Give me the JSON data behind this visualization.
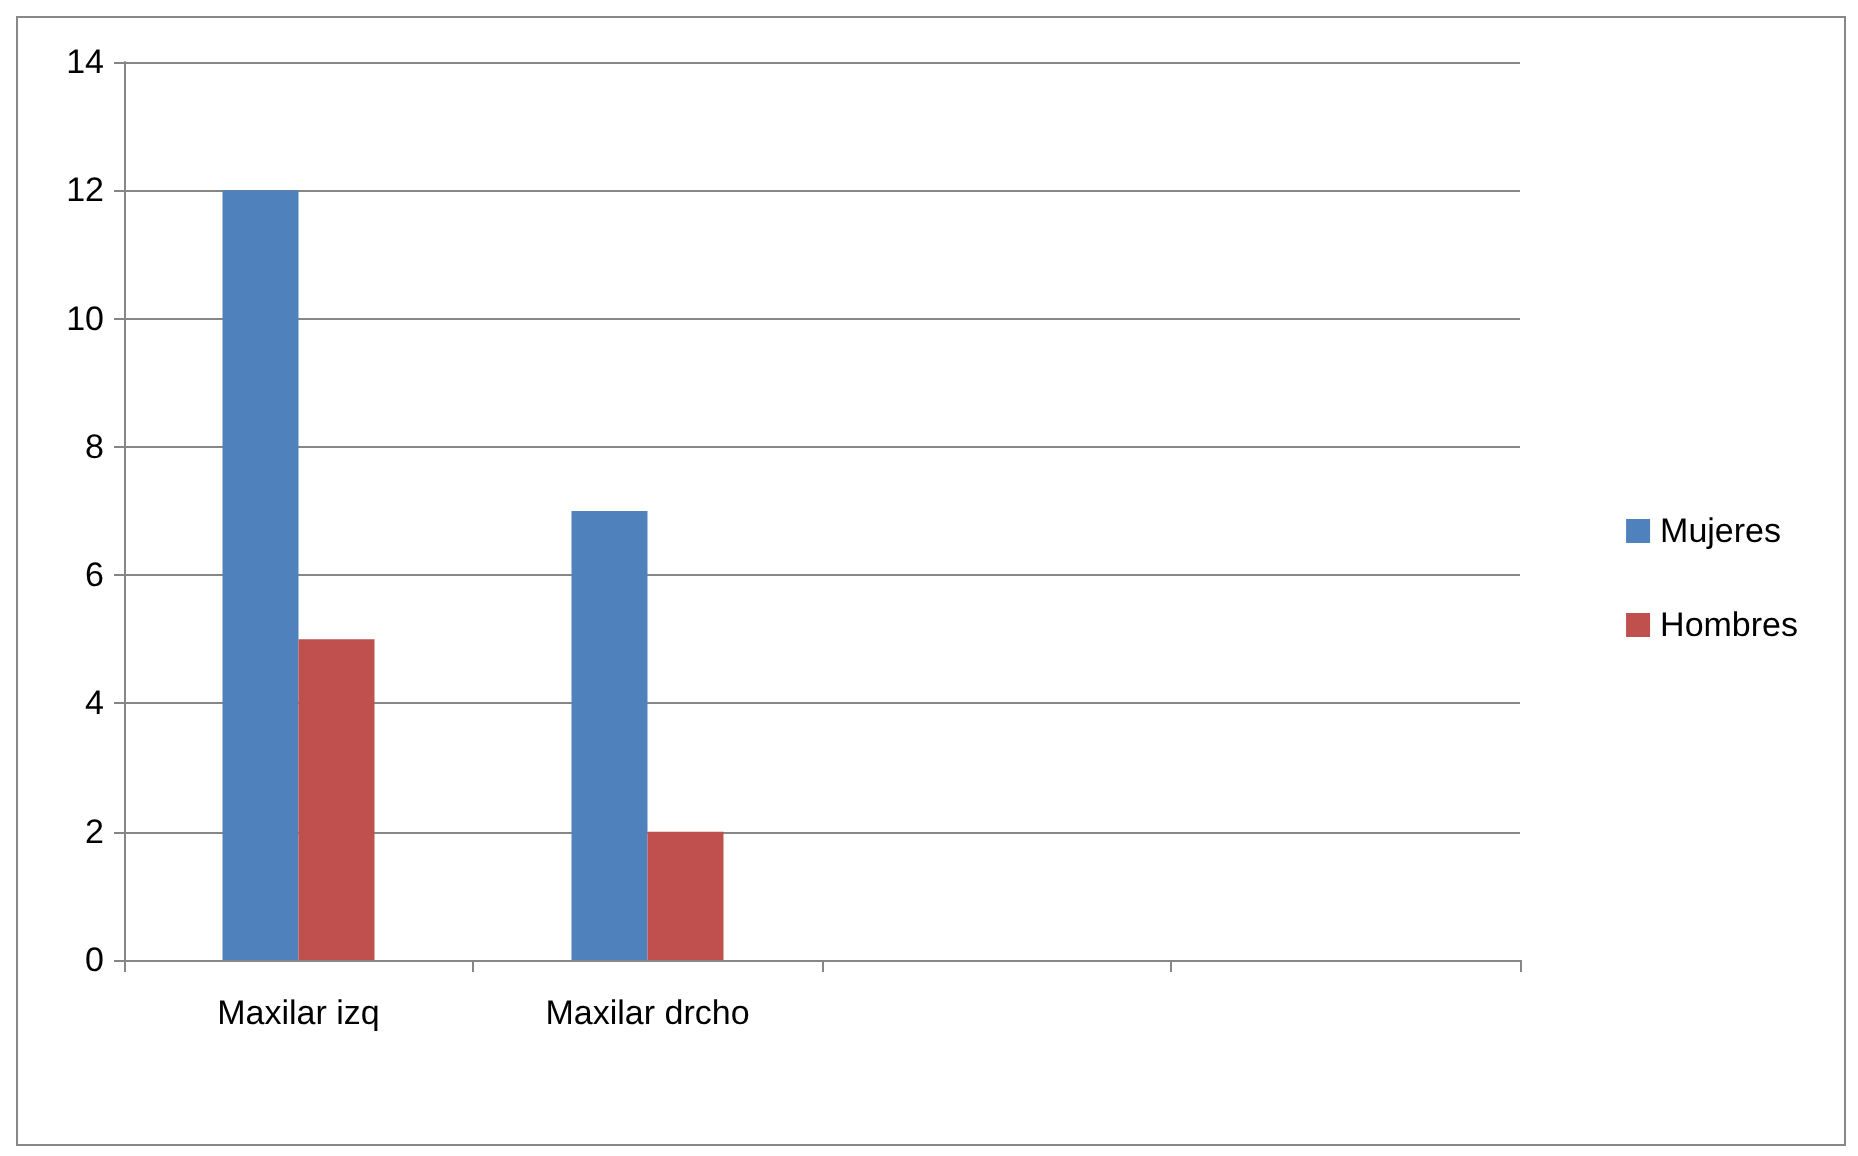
{
  "chart_data": {
    "type": "bar",
    "categories": [
      "Maxilar izq",
      "Maxilar drcho",
      null,
      null
    ],
    "series": [
      {
        "name": "Mujeres",
        "color": "#4f81bd",
        "values": [
          12,
          7,
          null,
          null
        ]
      },
      {
        "name": "Hombres",
        "color": "#c0504d",
        "values": [
          5,
          2,
          null,
          null
        ]
      }
    ],
    "ylim": [
      0,
      14
    ],
    "yticks": [
      0,
      2,
      4,
      6,
      8,
      10,
      12,
      14
    ],
    "grid": "y",
    "legend": "right"
  }
}
